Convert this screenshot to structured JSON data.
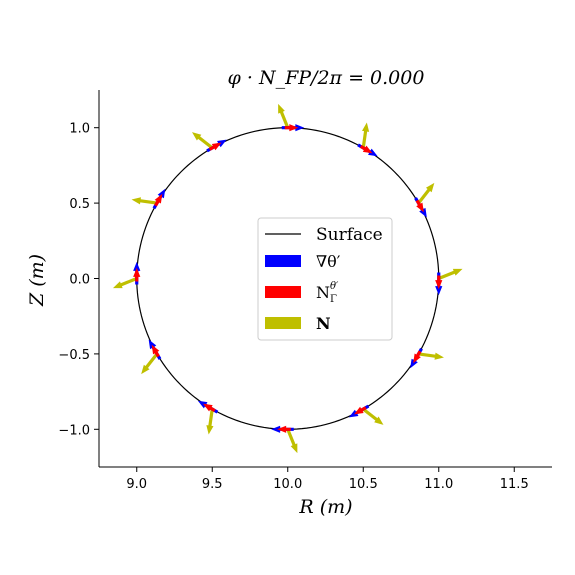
{
  "chart_data": {
    "type": "quiver",
    "title": "φ · N_FP/2π = 0.000",
    "xlabel": "R (m)",
    "ylabel": "Z (m)",
    "xlim": [
      8.75,
      11.75
    ],
    "ylim": [
      -1.25,
      1.25
    ],
    "xticks": [
      9.0,
      9.5,
      10.0,
      10.5,
      11.0,
      11.5
    ],
    "xtick_labels": [
      "9.0",
      "9.5",
      "10.0",
      "10.5",
      "11.0",
      "11.5"
    ],
    "yticks": [
      -1.0,
      -0.5,
      0.0,
      0.5,
      1.0
    ],
    "ytick_labels": [
      "−1.0",
      "−0.5",
      "0.0",
      "0.5",
      "1.0"
    ],
    "grid": false,
    "legend_position": "center",
    "surface": {
      "center_R": 10.0,
      "center_Z": 0.0,
      "radius": 1.0
    },
    "arrow_points_deg": [
      0,
      30,
      60,
      90,
      120,
      150,
      180,
      210,
      240,
      270,
      300,
      330
    ],
    "series": [
      {
        "name": "Surface",
        "kind": "line",
        "color": "#000000"
      },
      {
        "name": "∇θ′",
        "kind": "arrows",
        "color": "#0000ff",
        "direction": "tangential",
        "length_m": 0.11
      },
      {
        "name": "N_Γ^θ′",
        "kind": "arrows",
        "color": "#ff0000",
        "direction": "tangential",
        "length_m": 0.09
      },
      {
        "name": "N",
        "kind": "arrows",
        "color": "#bfbf00",
        "direction": "outward_rotated",
        "length_m": 0.17
      }
    ]
  }
}
